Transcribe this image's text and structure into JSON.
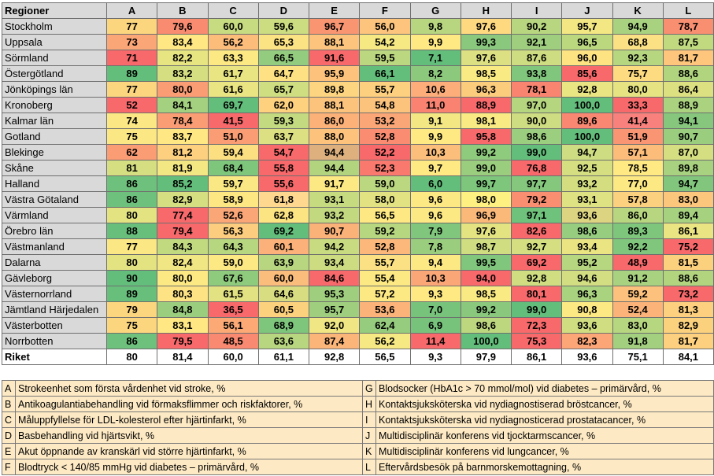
{
  "header": {
    "region_label": "Regioner",
    "columns": [
      "A",
      "B",
      "C",
      "D",
      "E",
      "F",
      "G",
      "H",
      "I",
      "J",
      "K",
      "L"
    ]
  },
  "rows": [
    {
      "region": "Stockholm",
      "values": [
        "77",
        "79,6",
        "60,0",
        "59,6",
        "96,7",
        "56,0",
        "9,8",
        "97,6",
        "90,2",
        "95,7",
        "94,9",
        "78,7"
      ],
      "colors": [
        "#fbd67f",
        "#f88b70",
        "#c7db80",
        "#cbdc81",
        "#fa9572",
        "#fcc47c",
        "#b7d67f",
        "#fed97f",
        "#b8d67f",
        "#f2e783",
        "#a8d27f",
        "#f98f71"
      ]
    },
    {
      "region": "Uppsala",
      "values": [
        "73",
        "83,4",
        "56,2",
        "65,3",
        "88,1",
        "54,2",
        "9,9",
        "99,3",
        "92,1",
        "96,5",
        "68,8",
        "87,5"
      ],
      "colors": [
        "#fba677",
        "#ffe883",
        "#fcbd7b",
        "#fbe283",
        "#fcc47c",
        "#f6e984",
        "#ffe983",
        "#8ac97d",
        "#9fcf7e",
        "#bcd87f",
        "#fbe183",
        "#c1da80"
      ]
    },
    {
      "region": "Sörmland",
      "values": [
        "71",
        "82,2",
        "63,3",
        "66,5",
        "91,6",
        "59,5",
        "7,1",
        "97,6",
        "87,6",
        "96,0",
        "92,3",
        "81,7"
      ],
      "colors": [
        "#f8696b",
        "#e7e482",
        "#fce983",
        "#93cc7e",
        "#f8696b",
        "#bbd77f",
        "#63be7b",
        "#dde082",
        "#cedd81",
        "#fde382",
        "#b6d67f",
        "#fdc67c"
      ]
    },
    {
      "region": "Östergötland",
      "values": [
        "89",
        "83,2",
        "61,7",
        "64,7",
        "95,9",
        "66,1",
        "8,2",
        "98,5",
        "93,8",
        "85,6",
        "75,7",
        "88,6"
      ],
      "colors": [
        "#63be7b",
        "#d5df81",
        "#e9e582",
        "#fee182",
        "#fdc27c",
        "#63be7b",
        "#8cc97d",
        "#f9ea84",
        "#80c67c",
        "#f8696b",
        "#fddb81",
        "#b1d47f"
      ]
    },
    {
      "region": "Jönköpings län",
      "values": [
        "77",
        "80,0",
        "61,6",
        "65,7",
        "89,8",
        "55,7",
        "10,6",
        "96,3",
        "78,1",
        "92,8",
        "80,0",
        "86,4"
      ],
      "colors": [
        "#fbd67f",
        "#fa9c74",
        "#eae582",
        "#cfde81",
        "#fdd47f",
        "#fcd07e",
        "#fcad79",
        "#fccc7d",
        "#f98470",
        "#e9e582",
        "#e6e482",
        "#dce081"
      ]
    },
    {
      "region": "Kronoberg",
      "values": [
        "52",
        "84,1",
        "69,7",
        "62,0",
        "88,1",
        "54,8",
        "11,0",
        "88,9",
        "97,0",
        "100,0",
        "33,3",
        "88,9"
      ],
      "colors": [
        "#f8696b",
        "#a4d17f",
        "#63be7b",
        "#fdd17e",
        "#fcc37c",
        "#fcc37c",
        "#f98370",
        "#f8696b",
        "#b5d57f",
        "#63be7b",
        "#f8696b",
        "#aad27f"
      ]
    },
    {
      "region": "Kalmar län",
      "values": [
        "74",
        "78,4",
        "41,5",
        "59,3",
        "86,0",
        "53,2",
        "9,1",
        "98,1",
        "90,0",
        "89,6",
        "41,4",
        "94,1"
      ],
      "colors": [
        "#fbe783",
        "#fa9d74",
        "#f8696b",
        "#c4da80",
        "#fbb178",
        "#fba677",
        "#f2e783",
        "#f9ea84",
        "#cedd81",
        "#f98771",
        "#f9817d",
        "#86c77d"
      ]
    },
    {
      "region": "Gotland",
      "values": [
        "75",
        "83,7",
        "51,0",
        "63,7",
        "88,0",
        "52,8",
        "9,9",
        "95,8",
        "98,6",
        "100,0",
        "51,9",
        "90,7"
      ],
      "colors": [
        "#fbe783",
        "#ffe883",
        "#fa9c74",
        "#dde082",
        "#fdc37c",
        "#f98c71",
        "#ffe983",
        "#f8696b",
        "#9bce7e",
        "#63be7b",
        "#fa9574",
        "#9ace7e"
      ]
    },
    {
      "region": "Blekinge",
      "values": [
        "62",
        "81,2",
        "59,4",
        "54,7",
        "94,4",
        "52,2",
        "10,3",
        "99,2",
        "99,0",
        "94,7",
        "57,1",
        "87,0"
      ],
      "colors": [
        "#fa9c74",
        "#fcd07e",
        "#fbdf81",
        "#f8696b",
        "#ddb07e",
        "#f8696b",
        "#fcbf7b",
        "#8fcb7d",
        "#63be7b",
        "#cedd81",
        "#fcbd7b",
        "#d5df81"
      ]
    },
    {
      "region": "Skåne",
      "values": [
        "81",
        "81,9",
        "68,4",
        "55,8",
        "94,4",
        "52,3",
        "9,7",
        "99,0",
        "76,8",
        "92,5",
        "78,5",
        "89,8"
      ],
      "colors": [
        "#d5df81",
        "#f3e783",
        "#7ec67c",
        "#f8696b",
        "#b3d47f",
        "#f9796e",
        "#ffe983",
        "#9ace7e",
        "#f8696b",
        "#d5df81",
        "#ffe983",
        "#a8d27f"
      ]
    },
    {
      "region": "Halland",
      "values": [
        "86",
        "85,2",
        "59,7",
        "55,6",
        "91,7",
        "59,0",
        "6,0",
        "99,7",
        "97,7",
        "93,2",
        "77,0",
        "94,7"
      ],
      "colors": [
        "#6ec17c",
        "#63be7b",
        "#f9e883",
        "#f8696b",
        "#fde983",
        "#bbd77f",
        "#63be7b",
        "#7ec67c",
        "#85c77d",
        "#d4de81",
        "#fde983",
        "#82c67d"
      ]
    },
    {
      "region": "Västra Götaland",
      "values": [
        "86",
        "82,9",
        "58,9",
        "61,8",
        "93,1",
        "58,0",
        "9,6",
        "98,0",
        "79,2",
        "93,1",
        "57,8",
        "83,0"
      ],
      "colors": [
        "#6ec17c",
        "#d5df81",
        "#fde783",
        "#fed88f",
        "#c6da80",
        "#e2e282",
        "#fde983",
        "#fef182",
        "#f98e71",
        "#dfe282",
        "#fbd07e",
        "#fcc77d"
      ]
    },
    {
      "region": "Värmland",
      "values": [
        "80",
        "77,4",
        "52,6",
        "62,8",
        "93,2",
        "56,5",
        "9,6",
        "96,9",
        "97,1",
        "93,6",
        "86,0",
        "89,4"
      ],
      "colors": [
        "#e3e382",
        "#f8696b",
        "#fba677",
        "#fde482",
        "#c3d980",
        "#fde883",
        "#fde983",
        "#fbb979",
        "#6fc27c",
        "#ddd482",
        "#b7d67f",
        "#a6d17f"
      ]
    },
    {
      "region": "Örebro län",
      "values": [
        "88",
        "79,4",
        "56,3",
        "69,2",
        "90,7",
        "59,2",
        "7,9",
        "97,6",
        "82,6",
        "98,6",
        "89,3",
        "86,1"
      ],
      "colors": [
        "#68bf7b",
        "#f8696b",
        "#fccd7e",
        "#63be7b",
        "#fbb279",
        "#b6d67f",
        "#80c67c",
        "#e3e382",
        "#f8696b",
        "#96cd7e",
        "#7ec67c",
        "#eae582"
      ]
    },
    {
      "region": "Västmanland",
      "values": [
        "77",
        "84,3",
        "64,3",
        "60,1",
        "94,2",
        "52,8",
        "7,8",
        "98,7",
        "92,7",
        "93,4",
        "92,2",
        "75,2"
      ],
      "colors": [
        "#fbe783",
        "#c1da80",
        "#b6d67f",
        "#fbb179",
        "#c8db80",
        "#fcb87a",
        "#9ace7e",
        "#d0de81",
        "#d5df81",
        "#eae582",
        "#80c67c",
        "#f8696b"
      ]
    },
    {
      "region": "Dalarna",
      "values": [
        "80",
        "82,4",
        "59,0",
        "63,9",
        "93,4",
        "55,7",
        "9,4",
        "99,5",
        "69,2",
        "95,2",
        "48,9",
        "81,5"
      ],
      "colors": [
        "#e3e382",
        "#f0e683",
        "#fde983",
        "#b7d67f",
        "#cddc81",
        "#fbe183",
        "#fde983",
        "#80c67c",
        "#f8696b",
        "#b6d67f",
        "#f8696b",
        "#fcd17e"
      ]
    },
    {
      "region": "Gävleborg",
      "values": [
        "90",
        "80,0",
        "67,6",
        "60,0",
        "84,6",
        "55,4",
        "10,3",
        "94,0",
        "92,8",
        "94,6",
        "91,2",
        "88,6"
      ],
      "colors": [
        "#63be7b",
        "#fde983",
        "#8fcb7d",
        "#fbbd7b",
        "#f8696b",
        "#fde983",
        "#fba677",
        "#f8696b",
        "#d0de81",
        "#d2de81",
        "#a8d27f",
        "#b3d47f"
      ]
    },
    {
      "region": "Västernorrland",
      "values": [
        "89",
        "80,3",
        "61,5",
        "64,6",
        "95,3",
        "57,2",
        "9,3",
        "98,5",
        "80,1",
        "96,3",
        "59,2",
        "73,2"
      ],
      "colors": [
        "#68bf7b",
        "#fde383",
        "#e2e282",
        "#d9dd81",
        "#9fcf7e",
        "#fde983",
        "#ffe983",
        "#f9ea84",
        "#f8696b",
        "#a9d37f",
        "#fcc17c",
        "#f8696b"
      ]
    },
    {
      "region": "Jämtland Härjedalen",
      "values": [
        "79",
        "84,8",
        "36,5",
        "60,5",
        "95,7",
        "53,6",
        "7,0",
        "99,2",
        "99,0",
        "90,8",
        "52,4",
        "81,3"
      ],
      "colors": [
        "#fbd67f",
        "#9ace7e",
        "#f8696b",
        "#fcd17e",
        "#9fcf7e",
        "#fbb379",
        "#78c37c",
        "#8ac97d",
        "#63be7b",
        "#fce983",
        "#fbb379",
        "#fcd07e"
      ]
    },
    {
      "region": "Västerbotten",
      "values": [
        "75",
        "83,1",
        "56,1",
        "68,9",
        "92,0",
        "62,4",
        "6,9",
        "98,6",
        "72,3",
        "93,6",
        "83,0",
        "82,9"
      ],
      "colors": [
        "#fbd67f",
        "#ffe883",
        "#fca976",
        "#7ec67c",
        "#f0e683",
        "#95cc7e",
        "#78c37c",
        "#bdd77f",
        "#f8696b",
        "#d0de81",
        "#b6d67f",
        "#fcd17e"
      ]
    },
    {
      "region": "Norrbotten",
      "values": [
        "86",
        "79,5",
        "48,5",
        "63,6",
        "87,4",
        "56,2",
        "11,4",
        "100,0",
        "75,3",
        "82,3",
        "91,8",
        "81,7"
      ],
      "colors": [
        "#6ec17c",
        "#f8696b",
        "#f98a71",
        "#b7d67f",
        "#fbb579",
        "#f6e984",
        "#f8696b",
        "#63be7b",
        "#f8696b",
        "#fca576",
        "#a2d07f",
        "#fcd07e"
      ]
    }
  ],
  "total": {
    "region": "Riket",
    "values": [
      "80",
      "81,4",
      "60,0",
      "61,1",
      "92,8",
      "56,5",
      "9,3",
      "97,9",
      "86,1",
      "93,6",
      "75,1",
      "84,1"
    ]
  },
  "legend": [
    [
      "A",
      "Strokeenhet som första vårdenhet vid stroke, %",
      "G",
      "Blodsocker (HbA1c > 70 mmol/mol) vid diabetes – primärvård, %"
    ],
    [
      "B",
      "Antikoagulantiabehandling vid förmaksflimmer och riskfaktorer, %",
      "H",
      "Kontaktsjuksköterska vid nydiagnostiserad bröstcancer, %"
    ],
    [
      "C",
      "Måluppfyllelse för LDL-kolesterol efter hjärtinfarkt, %",
      "I",
      "Kontaktsjuksköterska vid nydiagnosticerad prostatacancer, %"
    ],
    [
      "D",
      "Basbehandling vid hjärtsvikt, %",
      "J",
      "Multidisciplinär konferens vid tjocktarmscancer, %"
    ],
    [
      "E",
      "Akut öppnande av kranskärl vid större hjärtinfarkt, %",
      "K",
      "Multidisciplinär konferens vid lungcancer, %"
    ],
    [
      "F",
      "Blodtryck < 140/85 mmHg vid diabetes – primärvård, %",
      "L",
      "Eftervårdsbesök på barnmorskemottagning, %"
    ]
  ]
}
